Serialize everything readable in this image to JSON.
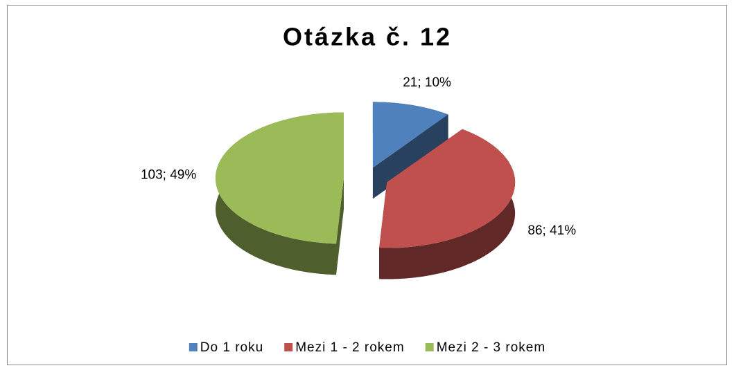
{
  "chart_data": {
    "type": "pie",
    "title": "Otázka č. 12",
    "categories": [
      "Do 1 roku",
      "Mezi 1 - 2 rokem",
      "Mezi 2 - 3 rokem"
    ],
    "values": [
      21,
      86,
      103
    ],
    "value_labels": [
      "21; 10%",
      "86; 41%",
      "103; 49%"
    ],
    "colors": [
      "#4f81bd",
      "#c0504d",
      "#9bbb59"
    ],
    "legend": "bottom"
  }
}
